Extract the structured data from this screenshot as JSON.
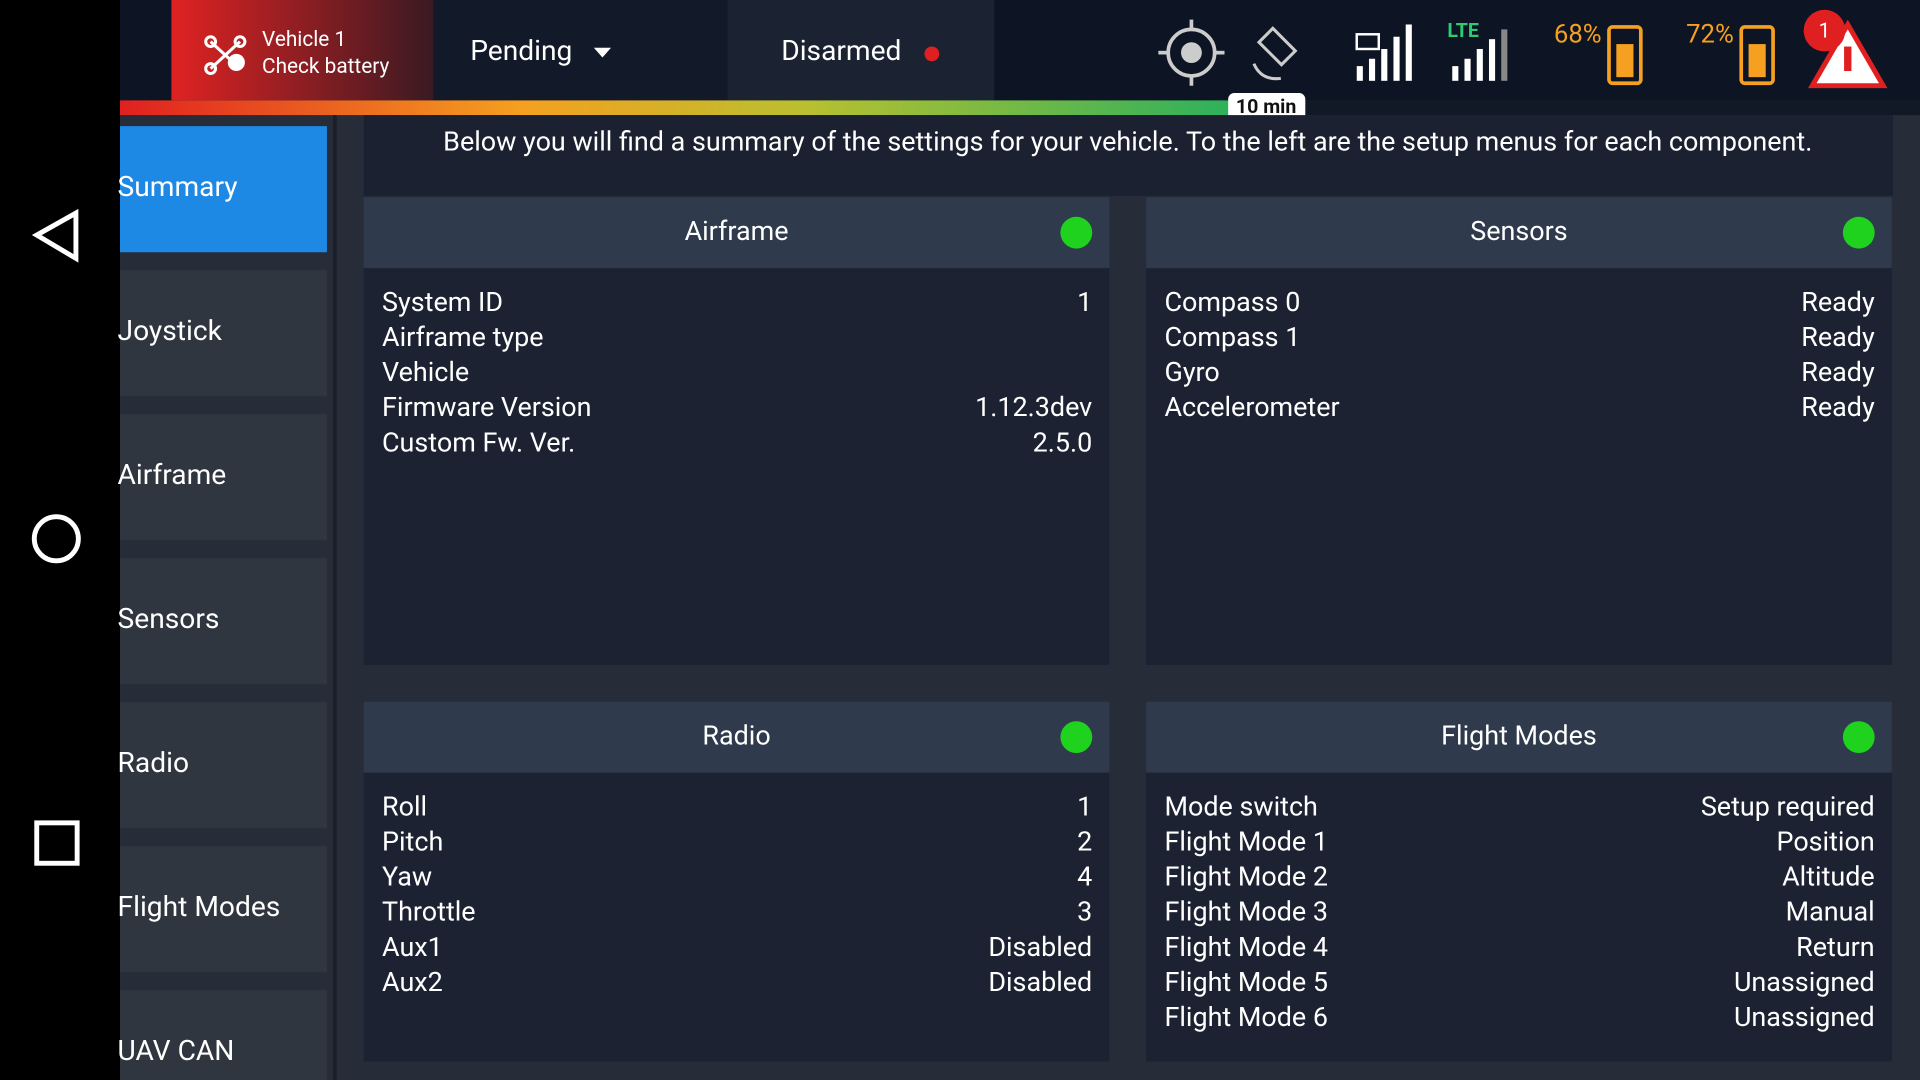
{
  "top_bar": {
    "vehicle": "Vehicle 1",
    "status": "Check battery",
    "flight_mode": "Pending",
    "arm_state": "Disarmed",
    "timer": "10 min",
    "network": "LTE",
    "vehicle_battery": "68%",
    "remote_battery": "72%",
    "alert_count": "1"
  },
  "sidebar": [
    "Summary",
    "Joystick",
    "Airframe",
    "Sensors",
    "Radio",
    "Flight Modes",
    "UAV CAN"
  ],
  "intro": "Below you will find a summary of the settings for your vehicle. To the left are the setup menus for each component.",
  "panels": [
    {
      "title": "Airframe",
      "rows": [
        {
          "label": "System ID",
          "value": "1"
        },
        {
          "label": "Airframe type"
        },
        {
          "label": "Vehicle"
        },
        {
          "label": "Firmware Version",
          "value": "1.12.3dev"
        },
        {
          "label": "Custom Fw. Ver.",
          "value": "2.5.0"
        }
      ]
    },
    {
      "title": "Sensors",
      "rows": [
        {
          "label": "Compass 0",
          "value": "Ready"
        },
        {
          "label": "Compass 1",
          "value": "Ready"
        },
        {
          "label": "Gyro",
          "value": "Ready"
        },
        {
          "label": "Accelerometer",
          "value": "Ready"
        }
      ]
    },
    {
      "title": "Radio",
      "rows": [
        {
          "label": "Roll",
          "value": "1"
        },
        {
          "label": "Pitch",
          "value": "2"
        },
        {
          "label": "Yaw",
          "value": "4"
        },
        {
          "label": "Throttle",
          "value": "3"
        },
        {
          "label": "Aux1",
          "value": "Disabled"
        },
        {
          "label": "Aux2",
          "value": "Disabled"
        }
      ]
    },
    {
      "title": "Flight Modes",
      "rows": [
        {
          "label": "Mode switch",
          "value": "Setup required"
        },
        {
          "label": "Flight Mode 1",
          "value": "Position"
        },
        {
          "label": "Flight Mode 2",
          "value": "Altitude"
        },
        {
          "label": "Flight Mode 3",
          "value": "Manual"
        },
        {
          "label": "Flight Mode 4",
          "value": "Return"
        },
        {
          "label": "Flight Mode 5",
          "value": "Unassigned"
        },
        {
          "label": "Flight Mode 6",
          "value": "Unassigned"
        }
      ]
    }
  ]
}
